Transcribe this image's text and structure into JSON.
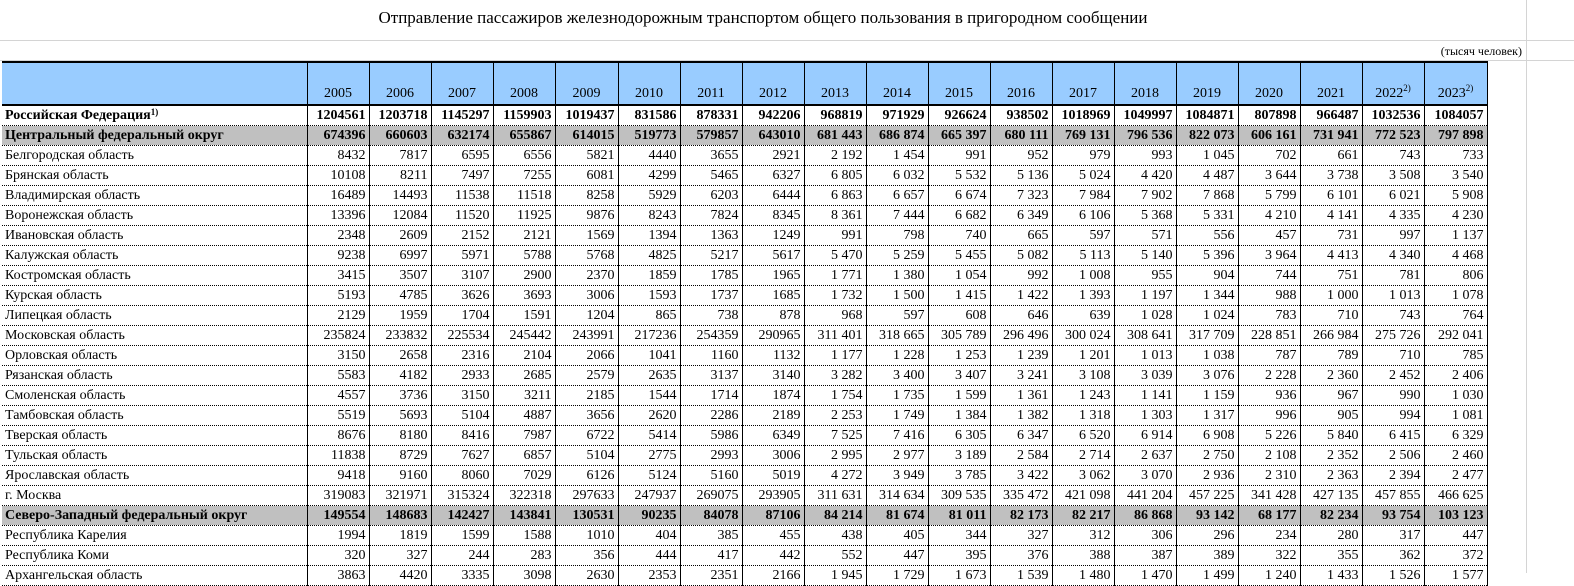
{
  "sheet": {
    "title": "Отправление пассажиров железнодорожным транспортом общего пользования в пригородном сообщении",
    "units": "(тысяч человек)",
    "columns": [
      {
        "label": "2005",
        "note": ""
      },
      {
        "label": "2006",
        "note": ""
      },
      {
        "label": "2007",
        "note": ""
      },
      {
        "label": "2008",
        "note": ""
      },
      {
        "label": "2009",
        "note": ""
      },
      {
        "label": "2010",
        "note": ""
      },
      {
        "label": "2011",
        "note": ""
      },
      {
        "label": "2012",
        "note": ""
      },
      {
        "label": "2013",
        "note": ""
      },
      {
        "label": "2014",
        "note": ""
      },
      {
        "label": "2015",
        "note": ""
      },
      {
        "label": "2016",
        "note": ""
      },
      {
        "label": "2017",
        "note": ""
      },
      {
        "label": "2018",
        "note": ""
      },
      {
        "label": "2019",
        "note": ""
      },
      {
        "label": "2020",
        "note": ""
      },
      {
        "label": "2021",
        "note": ""
      },
      {
        "label": "2022",
        "note": "2)"
      },
      {
        "label": "2023",
        "note": "2)"
      }
    ],
    "rows": [
      {
        "name": "Российская Федерация",
        "note": "1)",
        "type": "total",
        "values": [
          "1204561",
          "1203718",
          "1145297",
          "1159903",
          "1019437",
          "831586",
          "878331",
          "942206",
          "968819",
          "971929",
          "926624",
          "938502",
          "1018969",
          "1049997",
          "1084871",
          "807898",
          "966487",
          "1032536",
          "1084057"
        ]
      },
      {
        "name": "Центральный федеральный округ",
        "note": "",
        "type": "district",
        "values": [
          "674396",
          "660603",
          "632174",
          "655867",
          "614015",
          "519773",
          "579857",
          "643010",
          "681 443",
          "686 874",
          "665 397",
          "680 111",
          "769 131",
          "796 536",
          "822 073",
          "606 161",
          "731 941",
          "772 523",
          "797 898"
        ]
      },
      {
        "name": "Белгородская область",
        "note": "",
        "type": "region",
        "values": [
          "8432",
          "7817",
          "6595",
          "6556",
          "5821",
          "4440",
          "3655",
          "2921",
          "2 192",
          "1 454",
          "991",
          "952",
          "979",
          "993",
          "1 045",
          "702",
          "661",
          "743",
          "733"
        ]
      },
      {
        "name": "Брянская область",
        "note": "",
        "type": "region",
        "values": [
          "10108",
          "8211",
          "7497",
          "7255",
          "6081",
          "4299",
          "5465",
          "6327",
          "6 805",
          "6 032",
          "5 532",
          "5 136",
          "5 024",
          "4 420",
          "4 487",
          "3 644",
          "3 738",
          "3 508",
          "3 540"
        ]
      },
      {
        "name": "Владимирская область",
        "note": "",
        "type": "region",
        "values": [
          "16489",
          "14493",
          "11538",
          "11518",
          "8258",
          "5929",
          "6203",
          "6444",
          "6 863",
          "6 657",
          "6 674",
          "7 323",
          "7 984",
          "7 902",
          "7 868",
          "5 799",
          "6 101",
          "6 021",
          "5 908"
        ]
      },
      {
        "name": "Воронежская область",
        "note": "",
        "type": "region",
        "values": [
          "13396",
          "12084",
          "11520",
          "11925",
          "9876",
          "8243",
          "7824",
          "8345",
          "8 361",
          "7 444",
          "6 682",
          "6 349",
          "6 106",
          "5 368",
          "5 331",
          "4 210",
          "4 141",
          "4 335",
          "4 230"
        ]
      },
      {
        "name": "Ивановская область",
        "note": "",
        "type": "region",
        "values": [
          "2348",
          "2609",
          "2152",
          "2121",
          "1569",
          "1394",
          "1363",
          "1249",
          "991",
          "798",
          "740",
          "665",
          "597",
          "571",
          "556",
          "457",
          "731",
          "997",
          "1 137"
        ]
      },
      {
        "name": "Калужская область",
        "note": "",
        "type": "region",
        "values": [
          "9238",
          "6997",
          "5971",
          "5788",
          "5768",
          "4825",
          "5217",
          "5617",
          "5 470",
          "5 259",
          "5 455",
          "5 082",
          "5 113",
          "5 140",
          "5 396",
          "3 964",
          "4 413",
          "4 340",
          "4 468"
        ]
      },
      {
        "name": "Костромская область",
        "note": "",
        "type": "region",
        "values": [
          "3415",
          "3507",
          "3107",
          "2900",
          "2370",
          "1859",
          "1785",
          "1965",
          "1 771",
          "1 380",
          "1 054",
          "992",
          "1 008",
          "955",
          "904",
          "744",
          "751",
          "781",
          "806"
        ]
      },
      {
        "name": "Курская область",
        "note": "",
        "type": "region",
        "values": [
          "5193",
          "4785",
          "3626",
          "3693",
          "3006",
          "1593",
          "1737",
          "1685",
          "1 732",
          "1 500",
          "1 415",
          "1 422",
          "1 393",
          "1 197",
          "1 344",
          "988",
          "1 000",
          "1 013",
          "1 078"
        ]
      },
      {
        "name": "Липецкая область",
        "note": "",
        "type": "region",
        "values": [
          "2129",
          "1959",
          "1704",
          "1591",
          "1204",
          "865",
          "738",
          "878",
          "968",
          "597",
          "608",
          "646",
          "639",
          "1 028",
          "1 024",
          "783",
          "710",
          "743",
          "764"
        ]
      },
      {
        "name": "Московская область",
        "note": "",
        "type": "region",
        "values": [
          "235824",
          "233832",
          "225534",
          "245442",
          "243991",
          "217236",
          "254359",
          "290965",
          "311 401",
          "318 665",
          "305 789",
          "296 496",
          "300 024",
          "308 641",
          "317 709",
          "228 851",
          "266 984",
          "275 726",
          "292 041"
        ]
      },
      {
        "name": "Орловская область",
        "note": "",
        "type": "region",
        "values": [
          "3150",
          "2658",
          "2316",
          "2104",
          "2066",
          "1041",
          "1160",
          "1132",
          "1 177",
          "1 228",
          "1 253",
          "1 239",
          "1 201",
          "1 013",
          "1 038",
          "787",
          "789",
          "710",
          "785"
        ]
      },
      {
        "name": "Рязанская область",
        "note": "",
        "type": "region",
        "values": [
          "5583",
          "4182",
          "2933",
          "2685",
          "2579",
          "2635",
          "3137",
          "3140",
          "3 282",
          "3 400",
          "3 407",
          "3 241",
          "3 108",
          "3 039",
          "3 076",
          "2 228",
          "2 360",
          "2 452",
          "2 406"
        ]
      },
      {
        "name": "Смоленская область",
        "note": "",
        "type": "region",
        "values": [
          "4557",
          "3736",
          "3150",
          "3211",
          "2185",
          "1544",
          "1714",
          "1874",
          "1 754",
          "1 735",
          "1 599",
          "1 361",
          "1 243",
          "1 141",
          "1 159",
          "936",
          "967",
          "990",
          "1 030"
        ]
      },
      {
        "name": "Тамбовская область",
        "note": "",
        "type": "region",
        "values": [
          "5519",
          "5693",
          "5104",
          "4887",
          "3656",
          "2620",
          "2286",
          "2189",
          "2 253",
          "1 749",
          "1 384",
          "1 382",
          "1 318",
          "1 303",
          "1 317",
          "996",
          "905",
          "994",
          "1 081"
        ]
      },
      {
        "name": "Тверская область",
        "note": "",
        "type": "region",
        "values": [
          "8676",
          "8180",
          "8416",
          "7987",
          "6722",
          "5414",
          "5986",
          "6349",
          "7 525",
          "7 416",
          "6 305",
          "6 347",
          "6 520",
          "6 914",
          "6 908",
          "5 226",
          "5 840",
          "6 415",
          "6 329"
        ]
      },
      {
        "name": "Тульская область",
        "note": "",
        "type": "region",
        "values": [
          "11838",
          "8729",
          "7627",
          "6857",
          "5104",
          "2775",
          "2993",
          "3006",
          "2 995",
          "2 977",
          "3 189",
          "2 584",
          "2 714",
          "2 637",
          "2 750",
          "2 108",
          "2 352",
          "2 506",
          "2 460"
        ]
      },
      {
        "name": "Ярославская область",
        "note": "",
        "type": "region",
        "values": [
          "9418",
          "9160",
          "8060",
          "7029",
          "6126",
          "5124",
          "5160",
          "5019",
          "4 272",
          "3 949",
          "3 785",
          "3 422",
          "3 062",
          "3 070",
          "2 936",
          "2 310",
          "2 363",
          "2 394",
          "2 477"
        ]
      },
      {
        "name": "г. Москва",
        "note": "",
        "type": "region",
        "values": [
          "319083",
          "321971",
          "315324",
          "322318",
          "297633",
          "247937",
          "269075",
          "293905",
          "311 631",
          "314 634",
          "309 535",
          "335 472",
          "421 098",
          "441 204",
          "457 225",
          "341 428",
          "427 135",
          "457 855",
          "466 625"
        ]
      },
      {
        "name": "Северо-Западный федеральный округ",
        "note": "",
        "type": "district",
        "values": [
          "149554",
          "148683",
          "142427",
          "143841",
          "130531",
          "90235",
          "84078",
          "87106",
          "84 214",
          "81 674",
          "81 011",
          "82 173",
          "82 217",
          "86 868",
          "93 142",
          "68 177",
          "82 234",
          "93 754",
          "103 123"
        ]
      },
      {
        "name": "Республика Карелия",
        "note": "",
        "type": "region",
        "values": [
          "1994",
          "1819",
          "1599",
          "1588",
          "1010",
          "404",
          "385",
          "455",
          "438",
          "405",
          "344",
          "327",
          "312",
          "306",
          "296",
          "234",
          "280",
          "317",
          "447"
        ]
      },
      {
        "name": "Республика Коми",
        "note": "",
        "type": "region",
        "values": [
          "320",
          "327",
          "244",
          "283",
          "356",
          "444",
          "417",
          "442",
          "552",
          "447",
          "395",
          "376",
          "388",
          "387",
          "389",
          "322",
          "355",
          "362",
          "372"
        ]
      },
      {
        "name": "Архангельская область",
        "note": "",
        "type": "region",
        "values": [
          "3863",
          "4420",
          "3335",
          "3098",
          "2630",
          "2353",
          "2351",
          "2166",
          "1 945",
          "1 729",
          "1 673",
          "1 539",
          "1 480",
          "1 470",
          "1 499",
          "1 240",
          "1 433",
          "1 526",
          "1 577"
        ]
      }
    ]
  }
}
